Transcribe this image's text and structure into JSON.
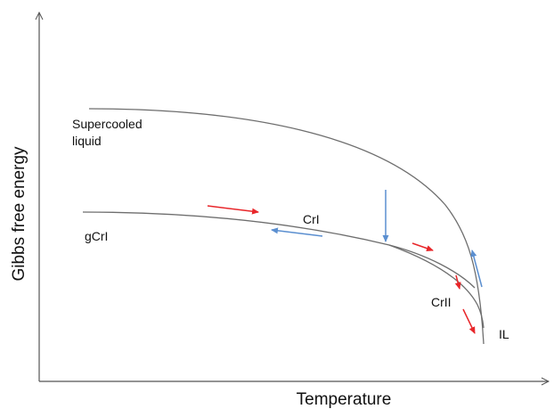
{
  "axes": {
    "y_label": "Gibbs free energy",
    "x_label": "Temperature"
  },
  "labels": {
    "supercooled_line1": "Supercooled",
    "supercooled_line2": "liquid",
    "gcrI": "gCrI",
    "crI": "CrI",
    "crII": "CrII",
    "il": "IL"
  },
  "colors": {
    "curve": "#6e6e6e",
    "axis": "#555555",
    "heating_arrow": "#e8262a",
    "cooling_arrow": "#5b8fd0"
  }
}
